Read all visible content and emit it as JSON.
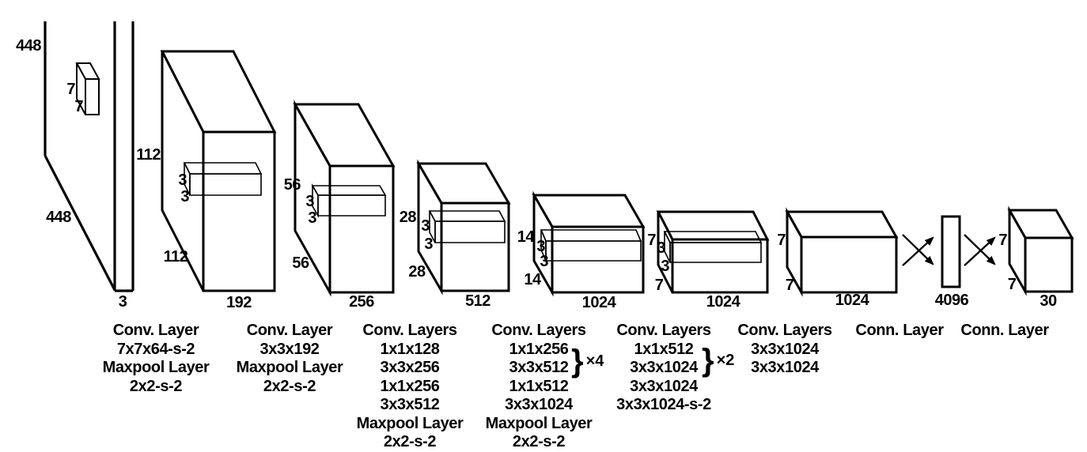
{
  "colors": {
    "ink": "#000000",
    "background": "#ffffff"
  },
  "input": {
    "height": "448",
    "width": "448",
    "channels": "3",
    "kernel_top": "7",
    "kernel_side": "7"
  },
  "blocks": [
    {
      "height": "112",
      "width": "112",
      "channels": "192",
      "kernel_top": "3",
      "kernel_side": "3"
    },
    {
      "height": "56",
      "width": "56",
      "channels": "256",
      "kernel_top": "3",
      "kernel_side": "3"
    },
    {
      "height": "28",
      "width": "28",
      "channels": "512",
      "kernel_top": "3",
      "kernel_side": "3"
    },
    {
      "height": "14",
      "width": "14",
      "channels": "1024",
      "kernel_top": "3",
      "kernel_side": "3"
    },
    {
      "height": "7",
      "width": "7",
      "channels": "1024",
      "kernel_top": "3",
      "kernel_side": "3"
    },
    {
      "height": "7",
      "width": "7",
      "channels": "1024"
    }
  ],
  "fc_vector": {
    "units": "4096"
  },
  "output": {
    "height": "7",
    "width": "7",
    "channels": "30"
  },
  "layer_labels": [
    {
      "lines": [
        "Conv. Layer",
        "7x7x64-s-2",
        "Maxpool Layer",
        "2x2-s-2"
      ]
    },
    {
      "lines": [
        "Conv. Layer",
        "3x3x192",
        "Maxpool Layer",
        "2x2-s-2"
      ]
    },
    {
      "lines": [
        "Conv. Layers",
        "1x1x128",
        "3x3x256",
        "1x1x256",
        "3x3x512",
        "Maxpool Layer",
        "2x2-s-2"
      ]
    },
    {
      "lines": [
        "Conv. Layers",
        "1x1x256",
        "3x3x512",
        "1x1x512",
        "3x3x1024",
        "Maxpool Layer",
        "2x2-s-2"
      ],
      "brace": {
        "glyph": "}",
        "label": "×4"
      }
    },
    {
      "lines": [
        "Conv. Layers",
        "1x1x512",
        "3x3x1024",
        "3x3x1024",
        "3x3x1024-s-2"
      ],
      "brace": {
        "glyph": "}",
        "label": "×2"
      }
    },
    {
      "lines": [
        "Conv. Layers",
        "3x3x1024",
        "3x3x1024"
      ]
    },
    {
      "lines": [
        "Conn. Layer"
      ]
    },
    {
      "lines": [
        "Conn. Layer"
      ]
    }
  ]
}
